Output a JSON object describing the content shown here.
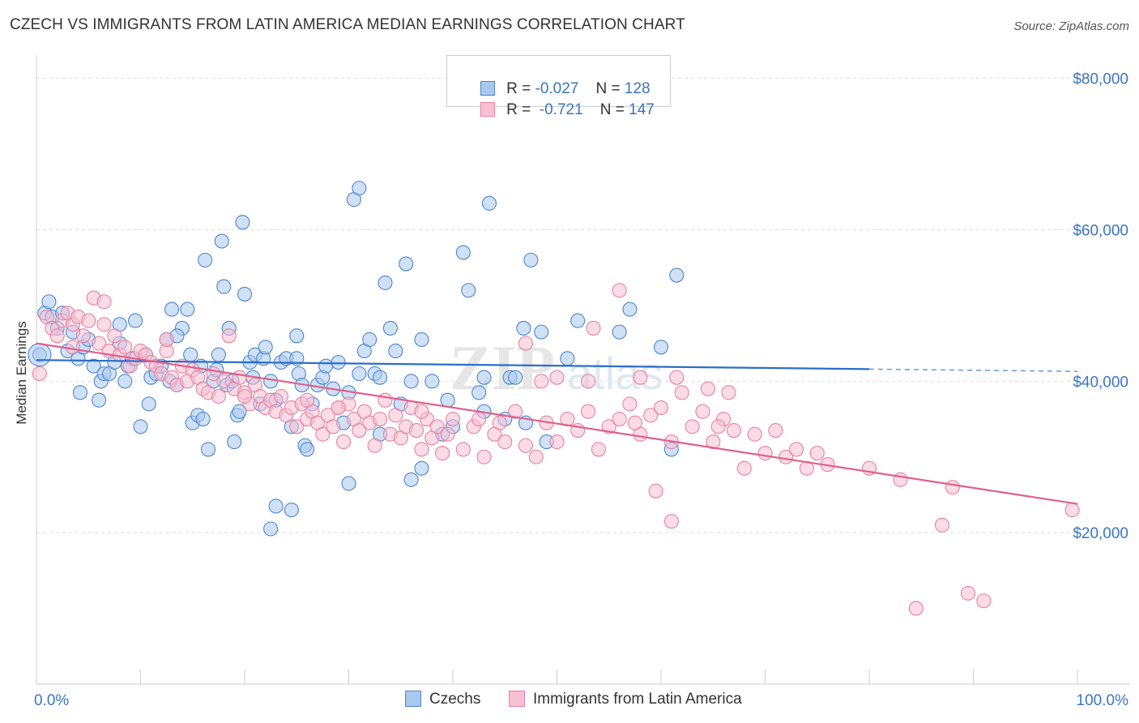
{
  "header": {
    "title": "CZECH VS IMMIGRANTS FROM LATIN AMERICA MEDIAN EARNINGS CORRELATION CHART",
    "source": "Source: ZipAtlas.com"
  },
  "legend": {
    "rows": [
      {
        "r_label": "R = ",
        "r_value": "-0.027",
        "n_label": "N = ",
        "n_value": "128"
      },
      {
        "r_label": "R = ",
        "r_value": " -0.721",
        "n_label": "N = ",
        "n_value": "147"
      }
    ]
  },
  "bottom_legend": {
    "czechs": "Czechs",
    "immigrants": "Immigrants from Latin America"
  },
  "colors": {
    "czech_fill": "#a9c8ee",
    "czech_stroke": "#4a86cf",
    "czech_line": "#2a6fc9",
    "latin_fill": "#f7c0d2",
    "latin_stroke": "#e8819f",
    "latin_line": "#e0608a",
    "axis_label": "#3a75c4",
    "grid": "#dddddd"
  },
  "chart_data": {
    "type": "scatter",
    "title": "CZECH VS IMMIGRANTS FROM LATIN AMERICA MEDIAN EARNINGS CORRELATION CHART",
    "xlabel": "",
    "ylabel": "Median Earnings",
    "xlim": [
      0,
      100
    ],
    "ylim": [
      0,
      82000
    ],
    "x_tick_labels": [
      "0.0%",
      "100.0%"
    ],
    "y_ticks": [
      20000,
      40000,
      60000,
      80000
    ],
    "y_tick_labels": [
      "$20,000",
      "$40,000",
      "$60,000",
      "$80,000"
    ],
    "grid": true,
    "legend_position": "top-center",
    "watermark": "ZIPatlas",
    "series": [
      {
        "name": "Czechs",
        "stats": {
          "R": -0.027,
          "N": 128
        },
        "trend": {
          "x0": 0,
          "y0": 42800,
          "x1": 80,
          "y1": 41600,
          "dashed_to_x": 100,
          "dashed_to_y": 41300
        },
        "points": [
          [
            0.3,
            43500
          ],
          [
            0.8,
            49000
          ],
          [
            1.2,
            50500
          ],
          [
            1.5,
            48500
          ],
          [
            2.0,
            47000
          ],
          [
            2.5,
            49000
          ],
          [
            3.0,
            44000
          ],
          [
            3.5,
            46500
          ],
          [
            4.0,
            43000
          ],
          [
            4.2,
            38500
          ],
          [
            4.5,
            44500
          ],
          [
            5.0,
            45500
          ],
          [
            5.5,
            42000
          ],
          [
            6.0,
            37500
          ],
          [
            6.2,
            40000
          ],
          [
            6.5,
            41000
          ],
          [
            7.0,
            41000
          ],
          [
            7.5,
            42500
          ],
          [
            8.0,
            45000
          ],
          [
            8.5,
            40000
          ],
          [
            8.8,
            42000
          ],
          [
            9.2,
            43000
          ],
          [
            9.5,
            48000
          ],
          [
            10.0,
            34000
          ],
          [
            10.5,
            43500
          ],
          [
            10.8,
            37000
          ],
          [
            11.0,
            40500
          ],
          [
            11.5,
            41000
          ],
          [
            12.0,
            42000
          ],
          [
            12.5,
            45500
          ],
          [
            12.8,
            40000
          ],
          [
            13.0,
            49500
          ],
          [
            13.5,
            39500
          ],
          [
            14.0,
            47000
          ],
          [
            14.5,
            49500
          ],
          [
            14.8,
            43500
          ],
          [
            15.0,
            34500
          ],
          [
            15.5,
            35500
          ],
          [
            15.8,
            42000
          ],
          [
            16.0,
            35000
          ],
          [
            16.2,
            56000
          ],
          [
            16.5,
            31000
          ],
          [
            17.0,
            40000
          ],
          [
            17.3,
            41500
          ],
          [
            17.5,
            43500
          ],
          [
            17.8,
            58500
          ],
          [
            18.0,
            52500
          ],
          [
            18.3,
            39500
          ],
          [
            18.8,
            40000
          ],
          [
            19.0,
            32000
          ],
          [
            19.3,
            35500
          ],
          [
            19.5,
            36000
          ],
          [
            19.8,
            61000
          ],
          [
            20.5,
            42500
          ],
          [
            20.8,
            40500
          ],
          [
            21.0,
            43500
          ],
          [
            21.5,
            37000
          ],
          [
            21.8,
            43000
          ],
          [
            22.0,
            44500
          ],
          [
            22.5,
            40000
          ],
          [
            23.0,
            37500
          ],
          [
            23.5,
            42500
          ],
          [
            24.0,
            43000
          ],
          [
            24.5,
            34000
          ],
          [
            25.0,
            46000
          ],
          [
            25.2,
            41000
          ],
          [
            25.5,
            39500
          ],
          [
            25.8,
            31500
          ],
          [
            26.0,
            31000
          ],
          [
            27.0,
            39500
          ],
          [
            27.5,
            40500
          ],
          [
            27.8,
            42000
          ],
          [
            28.5,
            39000
          ],
          [
            29.0,
            42500
          ],
          [
            29.5,
            34500
          ],
          [
            30.0,
            38500
          ],
          [
            30.5,
            64000
          ],
          [
            31.0,
            41000
          ],
          [
            31.5,
            44000
          ],
          [
            32.0,
            45500
          ],
          [
            32.5,
            41000
          ],
          [
            33.0,
            33000
          ],
          [
            33.5,
            53000
          ],
          [
            34.0,
            47000
          ],
          [
            34.5,
            44000
          ],
          [
            35.0,
            37000
          ],
          [
            35.5,
            55500
          ],
          [
            36.0,
            40000
          ],
          [
            37.0,
            45500
          ],
          [
            38.0,
            40000
          ],
          [
            39.0,
            33000
          ],
          [
            40.0,
            34000
          ],
          [
            41.0,
            57000
          ],
          [
            41.5,
            52000
          ],
          [
            42.5,
            38500
          ],
          [
            43.0,
            36000
          ],
          [
            43.5,
            63500
          ],
          [
            45.0,
            35000
          ],
          [
            45.5,
            40500
          ],
          [
            46.0,
            40500
          ],
          [
            46.8,
            47000
          ],
          [
            47.0,
            34500
          ],
          [
            47.5,
            56000
          ],
          [
            48.5,
            46500
          ],
          [
            49.0,
            32000
          ],
          [
            51.0,
            43000
          ],
          [
            52.0,
            48000
          ],
          [
            56.0,
            46500
          ],
          [
            57.0,
            49500
          ],
          [
            60.0,
            44500
          ],
          [
            61.0,
            31000
          ],
          [
            61.5,
            54000
          ],
          [
            22.5,
            20500
          ],
          [
            23.0,
            23500
          ],
          [
            24.5,
            23000
          ],
          [
            30.0,
            26500
          ],
          [
            36.0,
            27000
          ],
          [
            37.0,
            28500
          ],
          [
            8.0,
            47500
          ],
          [
            25.0,
            43000
          ],
          [
            33.0,
            40500
          ],
          [
            13.5,
            46000
          ],
          [
            18.5,
            47000
          ],
          [
            43.0,
            40500
          ],
          [
            31.0,
            65500
          ],
          [
            20.0,
            51500
          ],
          [
            26.5,
            37000
          ],
          [
            39.5,
            37500
          ]
        ]
      },
      {
        "name": "Immigrants from Latin America",
        "stats": {
          "R": -0.721,
          "N": 147
        },
        "trend": {
          "x0": 0,
          "y0": 45000,
          "x1": 100,
          "y1": 23800
        },
        "points": [
          [
            0.3,
            41000
          ],
          [
            1.0,
            48500
          ],
          [
            1.5,
            47000
          ],
          [
            2.0,
            46000
          ],
          [
            2.5,
            48000
          ],
          [
            3.0,
            49000
          ],
          [
            3.5,
            47500
          ],
          [
            4.0,
            48500
          ],
          [
            4.5,
            46000
          ],
          [
            5.0,
            48000
          ],
          [
            5.5,
            51000
          ],
          [
            6.0,
            45000
          ],
          [
            6.5,
            47500
          ],
          [
            7.0,
            44000
          ],
          [
            7.5,
            46000
          ],
          [
            8.0,
            43500
          ],
          [
            8.5,
            44500
          ],
          [
            9.0,
            42000
          ],
          [
            9.5,
            43000
          ],
          [
            10.0,
            44000
          ],
          [
            10.5,
            43500
          ],
          [
            11.0,
            42500
          ],
          [
            11.5,
            42000
          ],
          [
            12.0,
            41000
          ],
          [
            12.5,
            44000
          ],
          [
            13.0,
            40500
          ],
          [
            13.5,
            39500
          ],
          [
            14.0,
            42000
          ],
          [
            14.5,
            40000
          ],
          [
            15.0,
            41500
          ],
          [
            15.5,
            40500
          ],
          [
            16.0,
            39000
          ],
          [
            16.5,
            38500
          ],
          [
            17.0,
            41000
          ],
          [
            17.5,
            38000
          ],
          [
            18.0,
            40000
          ],
          [
            18.5,
            46000
          ],
          [
            19.0,
            39000
          ],
          [
            19.5,
            40500
          ],
          [
            20.0,
            38500
          ],
          [
            20.5,
            37000
          ],
          [
            21.0,
            39500
          ],
          [
            21.5,
            38000
          ],
          [
            22.0,
            36500
          ],
          [
            22.5,
            37500
          ],
          [
            23.0,
            36000
          ],
          [
            23.5,
            38000
          ],
          [
            24.0,
            35500
          ],
          [
            24.5,
            36500
          ],
          [
            25.0,
            34000
          ],
          [
            25.5,
            37000
          ],
          [
            26.0,
            35000
          ],
          [
            26.5,
            36000
          ],
          [
            27.0,
            34500
          ],
          [
            27.5,
            33000
          ],
          [
            28.0,
            35500
          ],
          [
            28.5,
            34000
          ],
          [
            29.0,
            36500
          ],
          [
            29.5,
            32000
          ],
          [
            30.0,
            37000
          ],
          [
            30.5,
            35000
          ],
          [
            31.0,
            33500
          ],
          [
            31.5,
            36000
          ],
          [
            32.0,
            34500
          ],
          [
            32.5,
            31500
          ],
          [
            33.0,
            35000
          ],
          [
            33.5,
            37500
          ],
          [
            34.0,
            33000
          ],
          [
            34.5,
            35500
          ],
          [
            35.0,
            32500
          ],
          [
            35.5,
            34000
          ],
          [
            36.0,
            36500
          ],
          [
            36.5,
            33500
          ],
          [
            37.0,
            31000
          ],
          [
            37.5,
            35000
          ],
          [
            38.0,
            32500
          ],
          [
            38.5,
            34000
          ],
          [
            39.0,
            30500
          ],
          [
            39.5,
            33000
          ],
          [
            40.0,
            35000
          ],
          [
            41.0,
            31000
          ],
          [
            42.0,
            34000
          ],
          [
            43.0,
            30000
          ],
          [
            44.0,
            33000
          ],
          [
            45.0,
            32000
          ],
          [
            46.0,
            36000
          ],
          [
            47.0,
            31500
          ],
          [
            48.0,
            30000
          ],
          [
            49.0,
            34500
          ],
          [
            50.0,
            32000
          ],
          [
            51.0,
            35000
          ],
          [
            52.0,
            33500
          ],
          [
            53.0,
            36000
          ],
          [
            54.0,
            31000
          ],
          [
            55.0,
            34000
          ],
          [
            56.0,
            35000
          ],
          [
            57.0,
            37000
          ],
          [
            58.0,
            33000
          ],
          [
            59.0,
            35500
          ],
          [
            60.0,
            36500
          ],
          [
            61.0,
            32000
          ],
          [
            62.0,
            38500
          ],
          [
            63.0,
            34000
          ],
          [
            64.0,
            36000
          ],
          [
            65.0,
            32000
          ],
          [
            66.0,
            35000
          ],
          [
            67.0,
            33500
          ],
          [
            68.0,
            28500
          ],
          [
            69.0,
            33000
          ],
          [
            70.0,
            30500
          ],
          [
            71.0,
            33500
          ],
          [
            72.0,
            30000
          ],
          [
            73.0,
            31000
          ],
          [
            74.0,
            28500
          ],
          [
            75.0,
            30500
          ],
          [
            76.0,
            29000
          ],
          [
            80.0,
            28500
          ],
          [
            83.0,
            27000
          ],
          [
            84.5,
            10000
          ],
          [
            87.0,
            21000
          ],
          [
            88.0,
            26000
          ],
          [
            89.5,
            12000
          ],
          [
            91.0,
            11000
          ],
          [
            99.5,
            23000
          ],
          [
            47.0,
            45000
          ],
          [
            53.0,
            40000
          ],
          [
            56.0,
            52000
          ],
          [
            58.0,
            40500
          ],
          [
            61.5,
            40500
          ],
          [
            64.5,
            39000
          ],
          [
            66.5,
            38500
          ],
          [
            53.5,
            47000
          ],
          [
            59.5,
            25500
          ],
          [
            61.0,
            21500
          ],
          [
            48.5,
            40000
          ],
          [
            50.0,
            40500
          ],
          [
            42.5,
            35000
          ],
          [
            44.5,
            34500
          ],
          [
            37.0,
            36000
          ],
          [
            29.0,
            36500
          ],
          [
            26.0,
            37500
          ],
          [
            20.0,
            38000
          ],
          [
            12.5,
            45500
          ],
          [
            6.5,
            50500
          ],
          [
            3.5,
            44500
          ],
          [
            57.5,
            34500
          ],
          [
            65.5,
            34000
          ]
        ]
      }
    ]
  }
}
